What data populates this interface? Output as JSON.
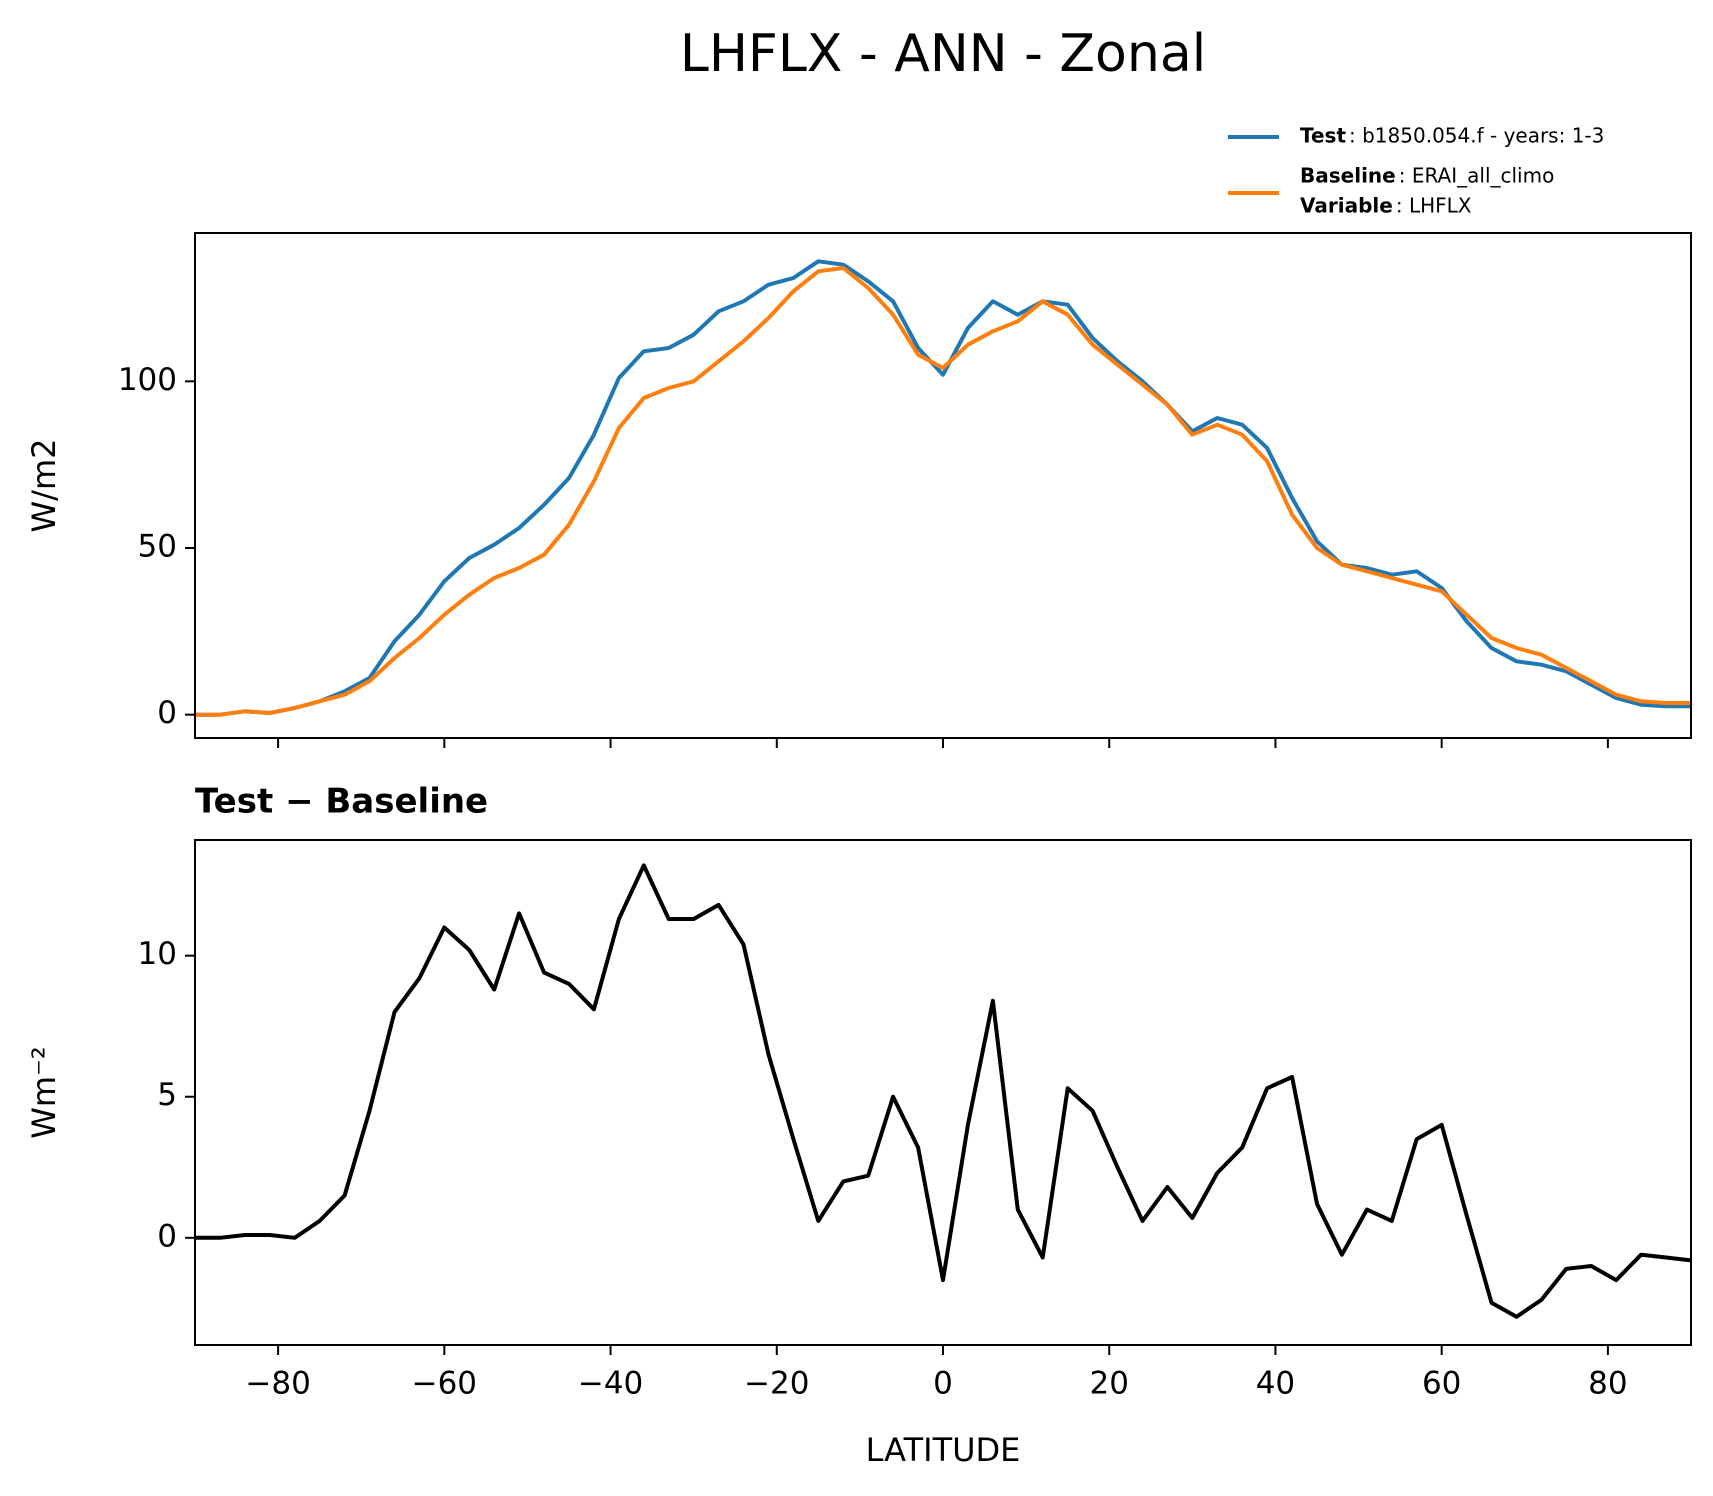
{
  "title": "LHFLX - ANN - Zonal",
  "chart_data": [
    {
      "type": "line",
      "x": [
        -90,
        -87,
        -84,
        -81,
        -78,
        -75,
        -72,
        -69,
        -66,
        -63,
        -60,
        -57,
        -54,
        -51,
        -48,
        -45,
        -42,
        -39,
        -36,
        -33,
        -30,
        -27,
        -24,
        -21,
        -18,
        -15,
        -12,
        -9,
        -6,
        -3,
        0,
        3,
        6,
        9,
        12,
        15,
        18,
        21,
        24,
        27,
        30,
        33,
        36,
        39,
        42,
        45,
        48,
        51,
        54,
        57,
        60,
        63,
        66,
        69,
        72,
        75,
        78,
        81,
        84,
        87,
        90
      ],
      "ylabel": "W/m2",
      "series": [
        {
          "name": "Test",
          "description": ": b1850.054.f - years: 1-3",
          "color": "#1f77b4",
          "values": [
            0,
            0,
            1,
            0.5,
            2,
            4,
            7,
            11,
            22,
            30,
            40,
            47,
            51,
            56,
            63,
            71,
            84,
            101,
            109,
            110,
            114,
            121,
            124,
            129,
            131,
            136,
            135,
            130,
            124,
            110,
            102,
            116,
            124,
            120,
            124,
            123,
            113,
            106,
            100,
            93,
            85,
            89,
            87,
            80,
            65,
            52,
            45,
            44,
            42,
            43,
            38,
            28,
            20,
            16,
            15,
            13,
            9,
            5,
            3,
            2.5,
            2.5
          ]
        },
        {
          "name": "Baseline",
          "description": ": ERAI_all_climo",
          "color": "#ff7f0e",
          "values": [
            0,
            0,
            1,
            0.5,
            2,
            4,
            6,
            10,
            17,
            23,
            30,
            36,
            41,
            44,
            48,
            57,
            70,
            86,
            95,
            98,
            100,
            106,
            112,
            119,
            127,
            133,
            134,
            128,
            120,
            108,
            104,
            111,
            115,
            118,
            124,
            120,
            111,
            105,
            99,
            93,
            84,
            87,
            84,
            76,
            60,
            50,
            45,
            43,
            41,
            39,
            37,
            30,
            23,
            20,
            18,
            14,
            10,
            6,
            4,
            3.5,
            3.5
          ]
        }
      ],
      "legend_note": {
        "name": "Variable",
        "description": ": LHFLX"
      },
      "xlim": [
        -90,
        90
      ],
      "xticks": [
        {
          "value": -80,
          "label": "−80"
        },
        {
          "value": -60,
          "label": "−60"
        },
        {
          "value": -40,
          "label": "−40"
        },
        {
          "value": -20,
          "label": "−20"
        },
        0,
        20,
        40,
        60,
        80
      ],
      "ylim": [
        -7,
        144.5
      ],
      "yticks": [
        0,
        50,
        100
      ]
    },
    {
      "type": "line",
      "subtitle": "Test − Baseline",
      "x": [
        -90,
        -87,
        -84,
        -81,
        -78,
        -75,
        -72,
        -69,
        -66,
        -63,
        -60,
        -57,
        -54,
        -51,
        -48,
        -45,
        -42,
        -39,
        -36,
        -33,
        -30,
        -27,
        -24,
        -21,
        -18,
        -15,
        -12,
        -9,
        -6,
        -3,
        0,
        3,
        6,
        9,
        12,
        15,
        18,
        21,
        24,
        27,
        30,
        33,
        36,
        39,
        42,
        45,
        48,
        51,
        54,
        57,
        60,
        63,
        66,
        69,
        72,
        75,
        78,
        81,
        84,
        87,
        90
      ],
      "xlabel": "LATITUDE",
      "ylabel": "Wm⁻²",
      "series": [
        {
          "color": "#000000",
          "values": [
            0,
            0,
            0.1,
            0.1,
            0,
            0.6,
            1.5,
            4.5,
            8.0,
            9.2,
            11,
            10.2,
            8.8,
            11.5,
            9.4,
            9,
            8.1,
            11.3,
            13.2,
            11.3,
            11.3,
            11.8,
            10.4,
            6.5,
            3.5,
            0.6,
            2.0,
            2.2,
            5,
            3.2,
            -1.5,
            4.0,
            8.4,
            1.0,
            -0.7,
            5.3,
            4.5,
            2.5,
            0.6,
            1.8,
            0.7,
            2.3,
            3.2,
            5.3,
            5.7,
            1.2,
            -0.6,
            1.0,
            0.6,
            3.5,
            4.0,
            0.8,
            -2.3,
            -2.8,
            -2.2,
            -1.1,
            -1.0,
            -1.5,
            -0.6,
            -0.7,
            -0.8
          ]
        }
      ],
      "xlim": [
        -90,
        90
      ],
      "xticks": [
        {
          "value": -80,
          "label": "−80"
        },
        {
          "value": -60,
          "label": "−60"
        },
        {
          "value": -40,
          "label": "−40"
        },
        {
          "value": -20,
          "label": "−20"
        },
        0,
        20,
        40,
        60,
        80
      ],
      "ylim": [
        -3.8,
        14.1
      ],
      "yticks": [
        0,
        5,
        10
      ]
    }
  ]
}
